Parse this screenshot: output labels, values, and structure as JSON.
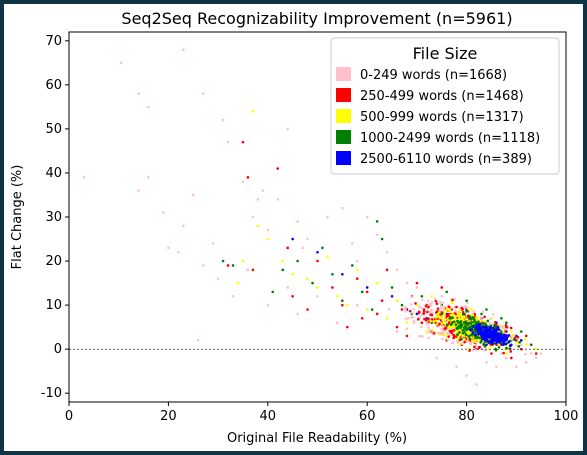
{
  "chart_data": {
    "type": "scatter",
    "title": "Seq2Seq Recognizability Improvement (n=5961)",
    "xlabel": "Original File Readability (%)",
    "ylabel": "Flat Change (%)",
    "xlim": [
      0,
      100
    ],
    "ylim": [
      -12,
      72
    ],
    "xticks": [
      0,
      20,
      40,
      60,
      80,
      100
    ],
    "yticks": [
      -10,
      0,
      10,
      20,
      30,
      40,
      50,
      60,
      70
    ],
    "reference_line_y": 0,
    "grid": false,
    "legend": {
      "title": "File Size",
      "placement": "top-right",
      "entries": [
        {
          "label": "0-249 words (n=1668)",
          "color": "#ffc0cb"
        },
        {
          "label": "250-499 words (n=1468)",
          "color": "#ff0000"
        },
        {
          "label": "500-999 words (n=1317)",
          "color": "#ffff00"
        },
        {
          "label": "1000-2499 words (n=1118)",
          "color": "#008000"
        },
        {
          "label": "2500-6110 words (n=389)",
          "color": "#0000ff"
        }
      ]
    },
    "series": [
      {
        "name": "0-249 words (n=1668)",
        "color": "#ffc0cb",
        "points": [
          [
            3,
            39
          ],
          [
            10.5,
            65
          ],
          [
            14,
            58
          ],
          [
            16,
            55
          ],
          [
            23,
            68
          ],
          [
            16,
            39
          ],
          [
            14,
            36
          ],
          [
            19,
            31
          ],
          [
            20,
            23
          ],
          [
            22,
            22
          ],
          [
            23,
            28
          ],
          [
            25,
            35
          ],
          [
            27,
            58
          ],
          [
            27,
            19
          ],
          [
            26,
            2
          ],
          [
            30,
            16
          ],
          [
            31,
            52
          ],
          [
            32,
            47
          ],
          [
            35,
            38
          ],
          [
            37,
            30
          ],
          [
            38,
            34
          ],
          [
            39,
            36
          ],
          [
            40,
            27
          ],
          [
            42,
            34
          ],
          [
            44,
            50
          ],
          [
            46,
            29
          ],
          [
            47,
            23
          ],
          [
            48,
            25
          ],
          [
            52,
            30
          ],
          [
            55,
            32
          ],
          [
            57,
            24
          ],
          [
            58,
            20
          ],
          [
            60,
            30
          ],
          [
            62,
            26
          ],
          [
            64,
            22
          ],
          [
            66,
            18
          ],
          [
            68,
            15
          ],
          [
            70,
            14
          ],
          [
            72,
            6
          ],
          [
            74,
            -2
          ],
          [
            76,
            2
          ],
          [
            78,
            -4
          ],
          [
            80,
            -6
          ],
          [
            82,
            -8
          ],
          [
            84,
            -3
          ],
          [
            86,
            -4
          ],
          [
            88,
            -2
          ],
          [
            90,
            -4
          ],
          [
            92,
            -3
          ],
          [
            94,
            -2
          ],
          [
            95,
            -1
          ],
          [
            75,
            12
          ],
          [
            78,
            8
          ],
          [
            80,
            3
          ],
          [
            83,
            0
          ],
          [
            85,
            1
          ],
          [
            87,
            -1
          ],
          [
            89,
            0
          ],
          [
            91,
            1
          ],
          [
            93,
            -1
          ],
          [
            70,
            10
          ],
          [
            66,
            4
          ],
          [
            62,
            8
          ],
          [
            58,
            10
          ],
          [
            54,
            6
          ],
          [
            50,
            12
          ],
          [
            46,
            8
          ],
          [
            44,
            14
          ],
          [
            40,
            10
          ],
          [
            36,
            18
          ],
          [
            33,
            12
          ],
          [
            29,
            24
          ]
        ]
      },
      {
        "name": "250-499 words (n=1468)",
        "color": "#ff0000",
        "points": [
          [
            35,
            47
          ],
          [
            36,
            39
          ],
          [
            42,
            41
          ],
          [
            32,
            19
          ],
          [
            37,
            18
          ],
          [
            44,
            23
          ],
          [
            50,
            20
          ],
          [
            53,
            14
          ],
          [
            55,
            10
          ],
          [
            58,
            16
          ],
          [
            60,
            13
          ],
          [
            62,
            8
          ],
          [
            64,
            18
          ],
          [
            66,
            5
          ],
          [
            68,
            3
          ],
          [
            69,
            12
          ],
          [
            71,
            6
          ],
          [
            72,
            10
          ],
          [
            73,
            4
          ],
          [
            74,
            8
          ],
          [
            76,
            2
          ],
          [
            77,
            9
          ],
          [
            78,
            5
          ],
          [
            79,
            1
          ],
          [
            80,
            7
          ],
          [
            81,
            3
          ],
          [
            82,
            0
          ],
          [
            83,
            6
          ],
          [
            84,
            2
          ],
          [
            85,
            -1
          ],
          [
            86,
            4
          ],
          [
            87,
            1
          ],
          [
            88,
            5
          ],
          [
            89,
            -2
          ],
          [
            90,
            2
          ],
          [
            91,
            0
          ],
          [
            92,
            3
          ],
          [
            93,
            1
          ],
          [
            94,
            -1
          ],
          [
            75,
            14
          ],
          [
            70,
            15
          ],
          [
            67,
            9
          ],
          [
            63,
            11
          ],
          [
            59,
            7
          ],
          [
            56,
            5
          ],
          [
            48,
            9
          ],
          [
            45,
            12
          ]
        ]
      },
      {
        "name": "500-999 words (n=1317)",
        "color": "#ffff00",
        "points": [
          [
            37,
            54
          ],
          [
            35,
            20
          ],
          [
            34,
            15
          ],
          [
            38,
            28
          ],
          [
            40,
            25
          ],
          [
            43,
            20
          ],
          [
            45,
            17
          ],
          [
            48,
            16
          ],
          [
            50,
            14
          ],
          [
            52,
            21
          ],
          [
            54,
            12
          ],
          [
            56,
            10
          ],
          [
            58,
            18
          ],
          [
            60,
            9
          ],
          [
            62,
            15
          ],
          [
            64,
            7
          ],
          [
            66,
            11
          ],
          [
            68,
            6
          ],
          [
            70,
            10
          ],
          [
            72,
            4
          ],
          [
            74,
            8
          ],
          [
            76,
            3
          ],
          [
            78,
            7
          ],
          [
            80,
            2
          ],
          [
            82,
            6
          ],
          [
            84,
            1
          ],
          [
            86,
            5
          ],
          [
            88,
            0
          ],
          [
            90,
            3
          ],
          [
            92,
            1
          ],
          [
            94,
            0
          ],
          [
            73,
            12
          ],
          [
            77,
            11
          ],
          [
            81,
            9
          ],
          [
            85,
            7
          ],
          [
            89,
            4
          ]
        ]
      },
      {
        "name": "1000-2499 words (n=1118)",
        "color": "#008000",
        "points": [
          [
            31,
            20
          ],
          [
            33,
            19
          ],
          [
            41,
            13
          ],
          [
            43,
            18
          ],
          [
            46,
            20
          ],
          [
            49,
            15
          ],
          [
            51,
            23
          ],
          [
            53,
            17
          ],
          [
            55,
            11
          ],
          [
            57,
            19
          ],
          [
            59,
            13
          ],
          [
            61,
            9
          ],
          [
            62,
            29
          ],
          [
            63,
            25
          ],
          [
            65,
            14
          ],
          [
            67,
            10
          ],
          [
            69,
            8
          ],
          [
            71,
            12
          ],
          [
            73,
            6
          ],
          [
            75,
            10
          ],
          [
            77,
            5
          ],
          [
            79,
            9
          ],
          [
            81,
            4
          ],
          [
            83,
            8
          ],
          [
            85,
            3
          ],
          [
            87,
            7
          ],
          [
            89,
            2
          ],
          [
            91,
            4
          ],
          [
            93,
            1
          ],
          [
            76,
            13
          ],
          [
            80,
            11
          ],
          [
            84,
            9
          ],
          [
            88,
            6
          ]
        ]
      },
      {
        "name": "2500-6110 words (n=389)",
        "color": "#0000ff",
        "points": [
          [
            45,
            25
          ],
          [
            50,
            22
          ],
          [
            55,
            17
          ],
          [
            60,
            14
          ],
          [
            65,
            12
          ],
          [
            68,
            9
          ],
          [
            70,
            8
          ],
          [
            72,
            7
          ],
          [
            74,
            7
          ],
          [
            75,
            6
          ],
          [
            76,
            8
          ],
          [
            77,
            5
          ],
          [
            78,
            7
          ],
          [
            79,
            4
          ],
          [
            80,
            6
          ],
          [
            81,
            3
          ],
          [
            82,
            5
          ],
          [
            83,
            2
          ],
          [
            84,
            4
          ],
          [
            85,
            3
          ],
          [
            86,
            5
          ],
          [
            87,
            2
          ],
          [
            88,
            4
          ],
          [
            89,
            1
          ],
          [
            90,
            3
          ],
          [
            91,
            2
          ],
          [
            80,
            9
          ],
          [
            83,
            7
          ],
          [
            86,
            6
          ],
          [
            84,
            1
          ],
          [
            82,
            3
          ],
          [
            78,
            4
          ]
        ]
      }
    ]
  }
}
